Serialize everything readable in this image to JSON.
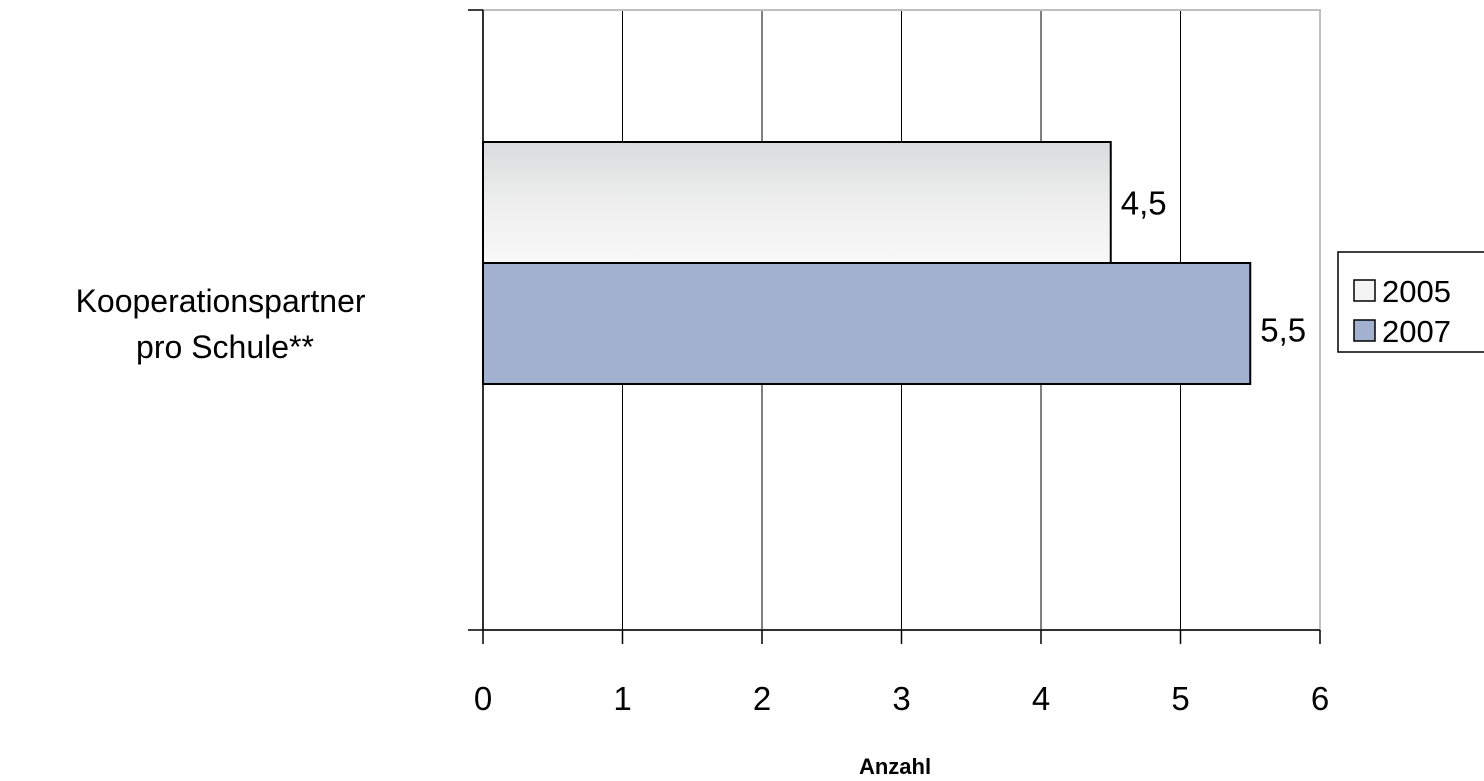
{
  "chart_data": {
    "type": "bar",
    "orientation": "horizontal",
    "categories": [
      "Kooperationspartner pro Schule**"
    ],
    "category_lines": [
      "Kooperationspartner",
      "pro Schule**"
    ],
    "series": [
      {
        "name": "2005",
        "values": [
          4.5
        ],
        "labels": [
          "4,5"
        ],
        "color": "#e8eaea"
      },
      {
        "name": "2007",
        "values": [
          5.5
        ],
        "labels": [
          "5,5"
        ],
        "color": "#a3b1d0"
      }
    ],
    "xlabel": "Anzahl",
    "ylabel": "",
    "xlim": [
      0,
      6
    ],
    "xticks": [
      0,
      1,
      2,
      3,
      4,
      5,
      6
    ],
    "xtick_labels": [
      "0",
      "1",
      "2",
      "3",
      "4",
      "5",
      "6"
    ],
    "grid": "vertical",
    "legend_position": "right"
  }
}
